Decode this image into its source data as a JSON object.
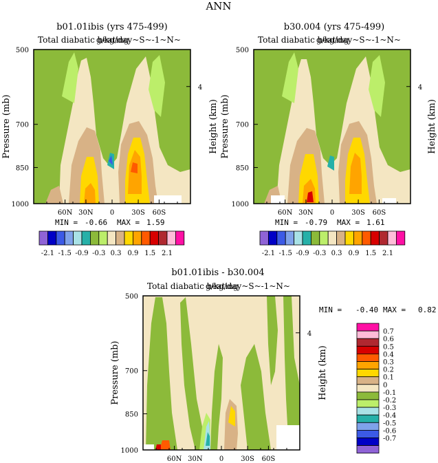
{
  "figure_title": "ANN",
  "colors": {
    "palette": [
      "#8f63d6",
      "#0000c6",
      "#3c5ae6",
      "#7fa2ea",
      "#a9e2e6",
      "#26b0a8",
      "#8cba3a",
      "#bcee6a",
      "#f4e6c2",
      "#d8b286",
      "#ffd800",
      "#ffa400",
      "#ff5a00",
      "#d80000",
      "#b02830",
      "#ffbcd8",
      "#ff10a4"
    ],
    "diff_palette": [
      "#8f63d6",
      "#0000c6",
      "#3c5ae6",
      "#7fa2ea",
      "#26b0a8",
      "#a9e2e6",
      "#bcee6a",
      "#8cba3a",
      "#f4e6c2",
      "#d8b286",
      "#ffd800",
      "#ffa400",
      "#ff5a00",
      "#d80000",
      "#b02830",
      "#ffbcd8",
      "#ff10a4"
    ]
  },
  "chart_data": [
    {
      "type": "heatmap",
      "title": "b01.01ibis (yrs 475-499)",
      "subtitle_left": "Total diabatic heating",
      "subtitle_right": "g/kg/day~S~-1~N~",
      "ylabel": "Pressure (mb)",
      "right_ylabel": "Height (km)",
      "yticks": [
        "500",
        "700",
        "850",
        "1000"
      ],
      "right_yticks": [
        "4"
      ],
      "xticks": [
        "60N",
        "30N",
        "0",
        "30S",
        "60S"
      ],
      "ylim": [
        1000,
        500
      ],
      "min_label": "MIN =",
      "min_value": "-0.66",
      "max_label": "MAX =",
      "max_value": "1.59",
      "colorbar_labels": [
        "-2.1",
        "-1.5",
        "-0.9",
        "-0.3",
        "0.3",
        "0.9",
        "1.5",
        "2.1"
      ]
    },
    {
      "type": "heatmap",
      "title": "b30.004 (yrs 475-499)",
      "subtitle_left": "Total diabatic heating",
      "subtitle_right": "g/kg/day~S~-1~N~",
      "ylabel": "Pressure (mb)",
      "right_ylabel": "Height (km)",
      "yticks": [
        "500",
        "700",
        "850",
        "1000"
      ],
      "right_yticks": [
        "4"
      ],
      "xticks": [
        "60N",
        "30N",
        "0",
        "30S",
        "60S"
      ],
      "ylim": [
        1000,
        500
      ],
      "min_label": "MIN =",
      "min_value": "-0.79",
      "max_label": "MAX =",
      "max_value": "1.61",
      "colorbar_labels": [
        "-2.1",
        "-1.5",
        "-0.9",
        "-0.3",
        "0.3",
        "0.9",
        "1.5",
        "2.1"
      ]
    },
    {
      "type": "heatmap",
      "title": "b01.01ibis - b30.004",
      "subtitle_left": "Total diabatic heating",
      "subtitle_right": "g/kg/day~S~-1~N~",
      "ylabel": "Pressure (mb)",
      "right_ylabel": "Height (km)",
      "yticks": [
        "500",
        "700",
        "850",
        "1000"
      ],
      "right_yticks": [
        "4"
      ],
      "xticks": [
        "60N",
        "30N",
        "0",
        "30S",
        "60S"
      ],
      "ylim": [
        1000,
        500
      ],
      "min_label": "MIN =",
      "min_value": "-0.40",
      "max_label": "MAX =",
      "max_value": "0.82",
      "colorbar_labels": [
        "0.7",
        "0.6",
        "0.5",
        "0.4",
        "0.3",
        "0.2",
        "0.1",
        "0",
        "-0.1",
        "-0.2",
        "-0.3",
        "-0.4",
        "-0.5",
        "-0.6",
        "-0.7"
      ]
    }
  ]
}
